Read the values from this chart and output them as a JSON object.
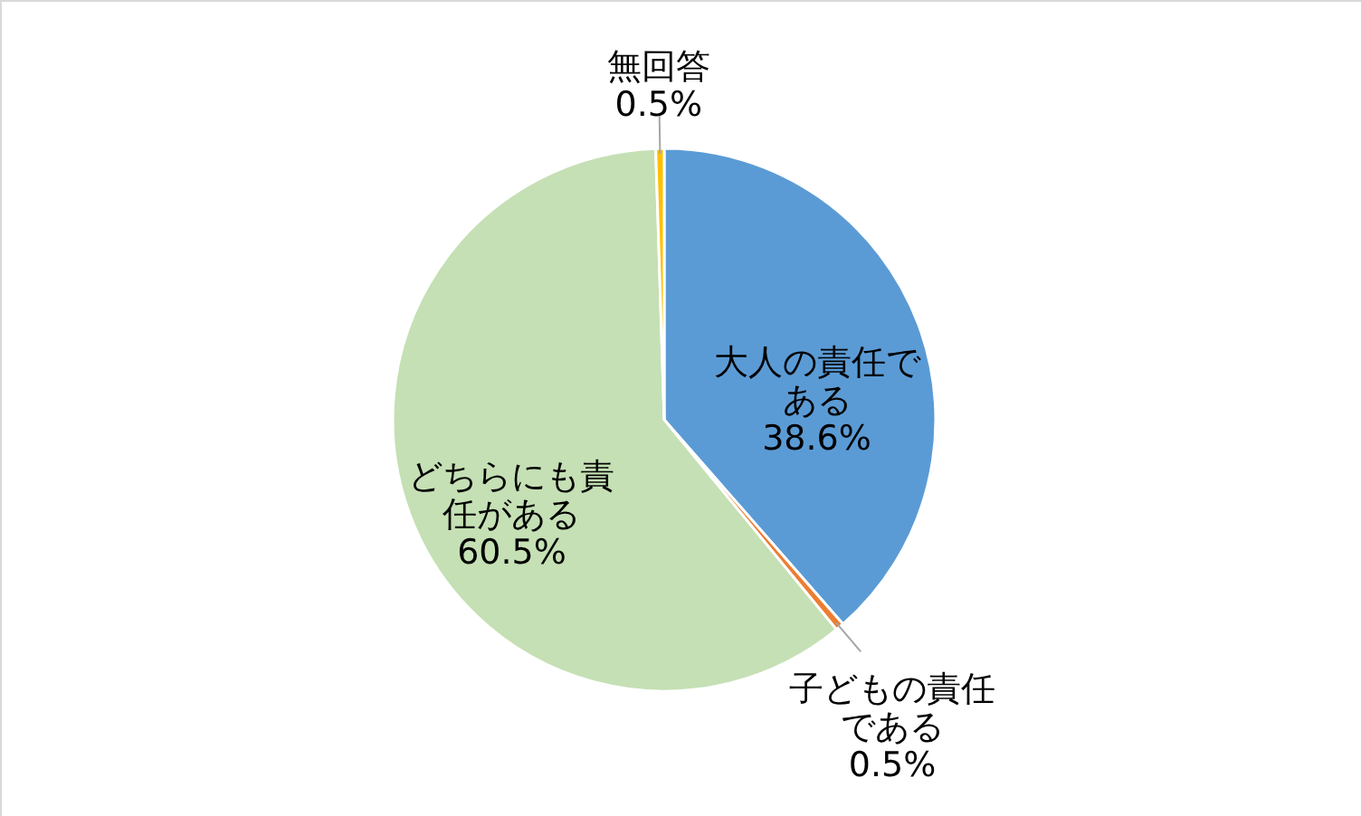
{
  "chart_data": {
    "type": "pie",
    "categories": [
      "大人の責任である",
      "子どもの責任である",
      "どちらにも責任がある",
      "無回答"
    ],
    "values": [
      38.6,
      0.5,
      60.5,
      0.5
    ],
    "value_labels": [
      "38.6%",
      "0.5%",
      "60.5%",
      "0.5%"
    ],
    "colors": [
      "#5b9bd5",
      "#ed7d31",
      "#c5e0b4",
      "#ffc000"
    ]
  }
}
